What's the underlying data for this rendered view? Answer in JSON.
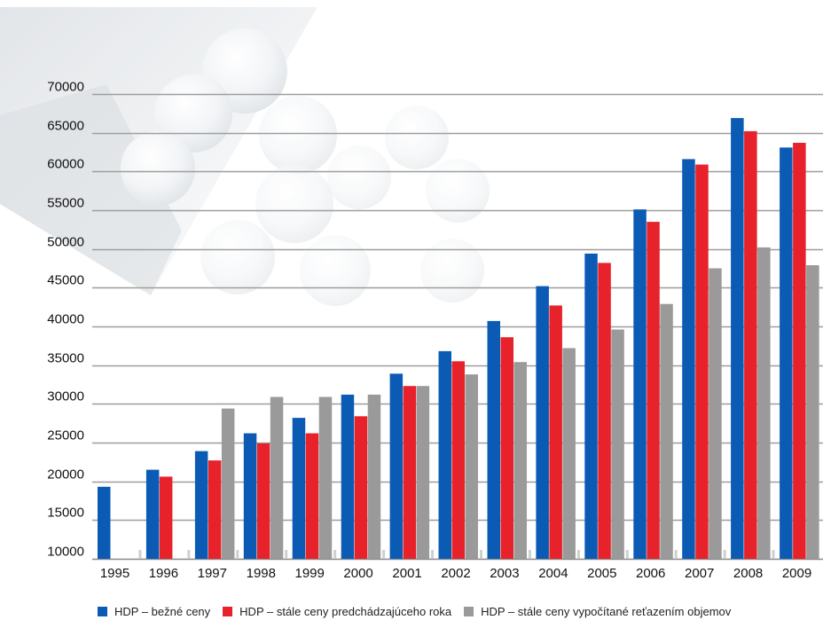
{
  "chart_data": {
    "type": "bar",
    "categories": [
      "1995",
      "1996",
      "1997",
      "1998",
      "1999",
      "2000",
      "2001",
      "2002",
      "2003",
      "2004",
      "2005",
      "2006",
      "2007",
      "2008",
      "2009"
    ],
    "series": [
      {
        "name": "HDP – bežné ceny",
        "color": "#0b5bb5",
        "values": [
          19300,
          21500,
          23900,
          26200,
          28200,
          31200,
          33900,
          36800,
          40700,
          45200,
          49400,
          55100,
          61600,
          66900,
          63100
        ]
      },
      {
        "name": "HDP – stále ceny predchádzajúceho roka",
        "color": "#e8222b",
        "values": [
          null,
          20600,
          22700,
          24900,
          26200,
          28400,
          32300,
          35500,
          38600,
          42700,
          48200,
          53500,
          60900,
          65200,
          63700
        ]
      },
      {
        "name": "HDP – stále ceny vypočítané reťazením objemov",
        "color": "#9a9a9a",
        "values": [
          null,
          null,
          29400,
          30900,
          30900,
          31200,
          32300,
          33800,
          35400,
          37200,
          39600,
          42900,
          47500,
          50200,
          47900
        ]
      }
    ],
    "yticks": [
      10000,
      15000,
      20000,
      25000,
      30000,
      35000,
      40000,
      45000,
      50000,
      55000,
      60000,
      65000,
      70000
    ],
    "ylim": [
      10000,
      70000
    ],
    "grid": true,
    "legend_position": "bottom",
    "title": "",
    "xlabel": "",
    "ylabel": "",
    "colors": {
      "grid": "#9e9e9e",
      "axis": "#888888",
      "background": "#ffffff"
    }
  }
}
